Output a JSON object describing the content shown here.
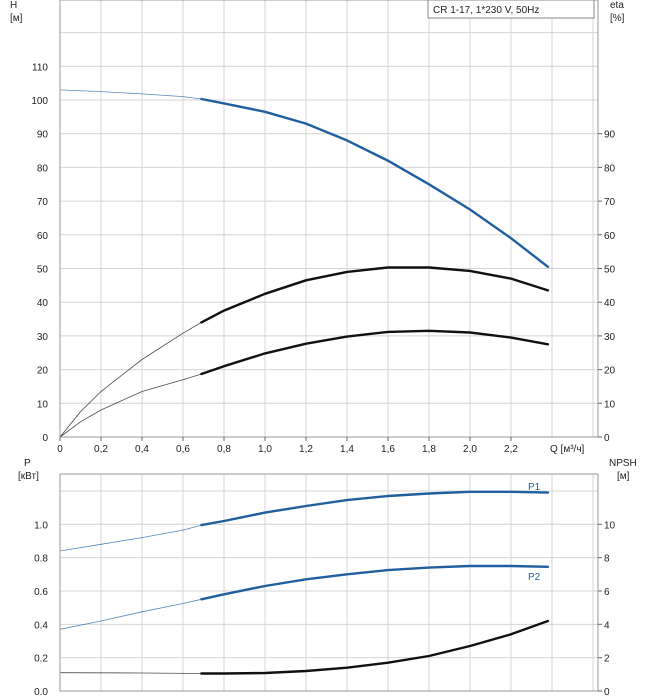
{
  "chart_data": [
    {
      "type": "line",
      "title": "CR 1-17, 1*230 V, 50Hz",
      "xlabel": "Q [м³/ч]",
      "ylabel": "H",
      "ylabel_unit": "[м]",
      "ylabel_right": "eta",
      "ylabel_right_unit": "[%]",
      "xlim": [
        0,
        2.9
      ],
      "ylim": [
        0,
        120
      ],
      "x_ticks": [
        "0",
        "0,2",
        "0,4",
        "0,6",
        "0,8",
        "1,0",
        "1,2",
        "1,4",
        "1,6",
        "1,8",
        "2,0",
        "2,2"
      ],
      "y_ticks_left": [
        "0",
        "10",
        "20",
        "30",
        "40",
        "50",
        "60",
        "70",
        "80",
        "90",
        "100",
        "110"
      ],
      "y_ticks_right": [
        "0",
        "10",
        "20",
        "30",
        "40",
        "50",
        "60",
        "70",
        "80",
        "90"
      ],
      "grid": true,
      "series": [
        {
          "color": "#1f5f9f",
          "duty_start": 0.69,
          "x": [
            0,
            0.2,
            0.4,
            0.6,
            0.69,
            0.8,
            1.0,
            1.2,
            1.4,
            1.6,
            1.8,
            2.0,
            2.2,
            2.38
          ],
          "y": [
            103,
            102.5,
            101.8,
            101,
            100.3,
            99,
            96.5,
            93,
            88,
            82,
            75,
            67.5,
            59,
            50.5
          ]
        },
        {
          "color": "#111111",
          "duty_start": 0.69,
          "x": [
            0,
            0.1,
            0.2,
            0.4,
            0.6,
            0.69,
            0.8,
            1.0,
            1.2,
            1.4,
            1.6,
            1.8,
            2.0,
            2.2,
            2.38
          ],
          "y": [
            0,
            7.5,
            13.5,
            23,
            30.8,
            34,
            37.5,
            42.5,
            46.5,
            49,
            50.3,
            50.3,
            49.3,
            47,
            43.5
          ]
        },
        {
          "color": "#111111",
          "duty_start": 0.69,
          "x": [
            0,
            0.1,
            0.2,
            0.4,
            0.6,
            0.69,
            0.8,
            1.0,
            1.2,
            1.4,
            1.6,
            1.8,
            2.0,
            2.2,
            2.38
          ],
          "y": [
            0,
            4.5,
            8,
            13.5,
            17,
            18.7,
            21,
            24.8,
            27.7,
            29.8,
            31.2,
            31.5,
            31,
            29.5,
            27.5
          ]
        }
      ]
    },
    {
      "type": "line",
      "ylabel": "P",
      "ylabel_unit": "[кВт]",
      "ylabel_right": "NPSH",
      "ylabel_right_unit": "[м]",
      "xlim": [
        0,
        2.9
      ],
      "ylim": [
        0,
        1.2
      ],
      "ylim_right": [
        0,
        12
      ],
      "y_ticks_left": [
        "0.0",
        "0.2",
        "0.4",
        "0.6",
        "0.8",
        "1.0"
      ],
      "y_ticks_right": [
        "0",
        "2",
        "4",
        "6",
        "8",
        "10"
      ],
      "grid": true,
      "series": [
        {
          "name": "P1",
          "color": "#1f5f9f",
          "duty_start": 0.69,
          "x": [
            0,
            0.2,
            0.4,
            0.6,
            0.69,
            0.8,
            1.0,
            1.2,
            1.4,
            1.6,
            1.8,
            2.0,
            2.2,
            2.38
          ],
          "y": [
            0.84,
            0.88,
            0.92,
            0.965,
            0.995,
            1.02,
            1.07,
            1.11,
            1.145,
            1.17,
            1.185,
            1.195,
            1.195,
            1.19
          ]
        },
        {
          "name": "P2",
          "color": "#1f5f9f",
          "duty_start": 0.69,
          "x": [
            0,
            0.2,
            0.4,
            0.6,
            0.69,
            0.8,
            1.0,
            1.2,
            1.4,
            1.6,
            1.8,
            2.0,
            2.2,
            2.38
          ],
          "y": [
            0.37,
            0.42,
            0.475,
            0.525,
            0.55,
            0.58,
            0.63,
            0.67,
            0.7,
            0.725,
            0.74,
            0.75,
            0.75,
            0.745
          ]
        },
        {
          "color": "#111111",
          "axis": "right",
          "duty_start": 0.69,
          "x": [
            0,
            0.4,
            0.69,
            0.8,
            1.0,
            1.2,
            1.4,
            1.6,
            1.8,
            2.0,
            2.2,
            2.38
          ],
          "y": [
            1.1,
            1.08,
            1.05,
            1.05,
            1.08,
            1.2,
            1.4,
            1.7,
            2.1,
            2.7,
            3.4,
            4.2
          ]
        }
      ]
    }
  ]
}
